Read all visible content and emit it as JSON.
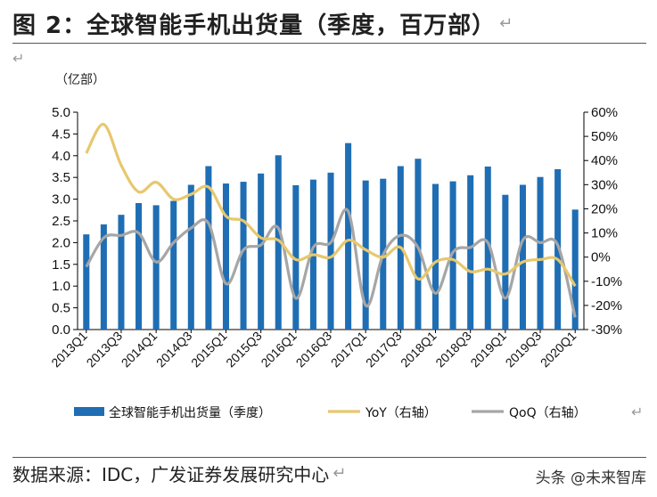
{
  "header": {
    "title": "图 2：全球智能手机出货量（季度，百万部）",
    "return_mark": "↵"
  },
  "source": {
    "text": "数据来源：IDC，广发证券发展研究中心",
    "return_mark": "↵"
  },
  "watermark": "头条 @未来智库",
  "chart_data": {
    "type": "bar",
    "left_axis_unit": "（亿部）",
    "categories": [
      "2013Q1",
      "2013Q2",
      "2013Q3",
      "2013Q4",
      "2014Q1",
      "2014Q2",
      "2014Q3",
      "2014Q4",
      "2015Q1",
      "2015Q2",
      "2015Q3",
      "2015Q4",
      "2016Q1",
      "2016Q2",
      "2016Q3",
      "2016Q4",
      "2017Q1",
      "2017Q2",
      "2017Q3",
      "2017Q4",
      "2018Q1",
      "2018Q2",
      "2018Q3",
      "2018Q4",
      "2019Q1",
      "2019Q2",
      "2019Q3",
      "2019Q4",
      "2020Q1"
    ],
    "x_tick_labels": [
      "2013Q1",
      "2013Q3",
      "2014Q1",
      "2014Q3",
      "2015Q1",
      "2015Q3",
      "2016Q1",
      "2016Q3",
      "2017Q1",
      "2017Q3",
      "2018Q1",
      "2018Q3",
      "2019Q1",
      "2019Q3",
      "2020Q1"
    ],
    "series": [
      {
        "name": "全球智能手机出货量（季度）",
        "type": "bar",
        "axis": "left",
        "color": "#1f6eb4",
        "values": [
          2.19,
          2.42,
          2.64,
          2.91,
          2.86,
          2.96,
          3.33,
          3.76,
          3.36,
          3.4,
          3.59,
          4.01,
          3.32,
          3.45,
          3.61,
          4.29,
          3.43,
          3.47,
          3.76,
          3.93,
          3.35,
          3.41,
          3.55,
          3.75,
          3.1,
          3.33,
          3.51,
          3.69,
          2.76
        ]
      },
      {
        "name": "YoY（右轴）",
        "type": "line",
        "axis": "right",
        "color": "#e6c86e",
        "values": [
          43,
          55,
          38,
          27,
          31,
          24,
          26,
          29,
          17,
          15,
          8,
          7,
          -1,
          1,
          0,
          7,
          3,
          0,
          4,
          -9,
          -2,
          -1,
          -6,
          -5,
          -7,
          -2,
          -1,
          -1,
          -12
        ]
      },
      {
        "name": "QoQ（右轴）",
        "type": "line",
        "axis": "right",
        "color": "#a6a6a6",
        "values": [
          -4,
          8,
          9,
          10,
          -2,
          6,
          12,
          14,
          -11,
          3,
          5,
          12,
          -17,
          4,
          6,
          19,
          -20,
          1,
          9,
          4,
          -15,
          2,
          4,
          6,
          -17,
          7,
          6,
          5,
          -25
        ]
      }
    ],
    "y_left": {
      "min": 0,
      "max": 5,
      "step": 0.5,
      "ticks": [
        "0.0",
        "0.5",
        "1.0",
        "1.5",
        "2.0",
        "2.5",
        "3.0",
        "3.5",
        "4.0",
        "4.5",
        "5.0"
      ]
    },
    "y_right": {
      "min": -30,
      "max": 60,
      "step": 10,
      "ticks": [
        "-30%",
        "-20%",
        "-10%",
        "0%",
        "10%",
        "20%",
        "30%",
        "40%",
        "50%",
        "60%"
      ]
    },
    "legend_return_mark": "↵",
    "legend_position": "bottom",
    "grid": false
  }
}
